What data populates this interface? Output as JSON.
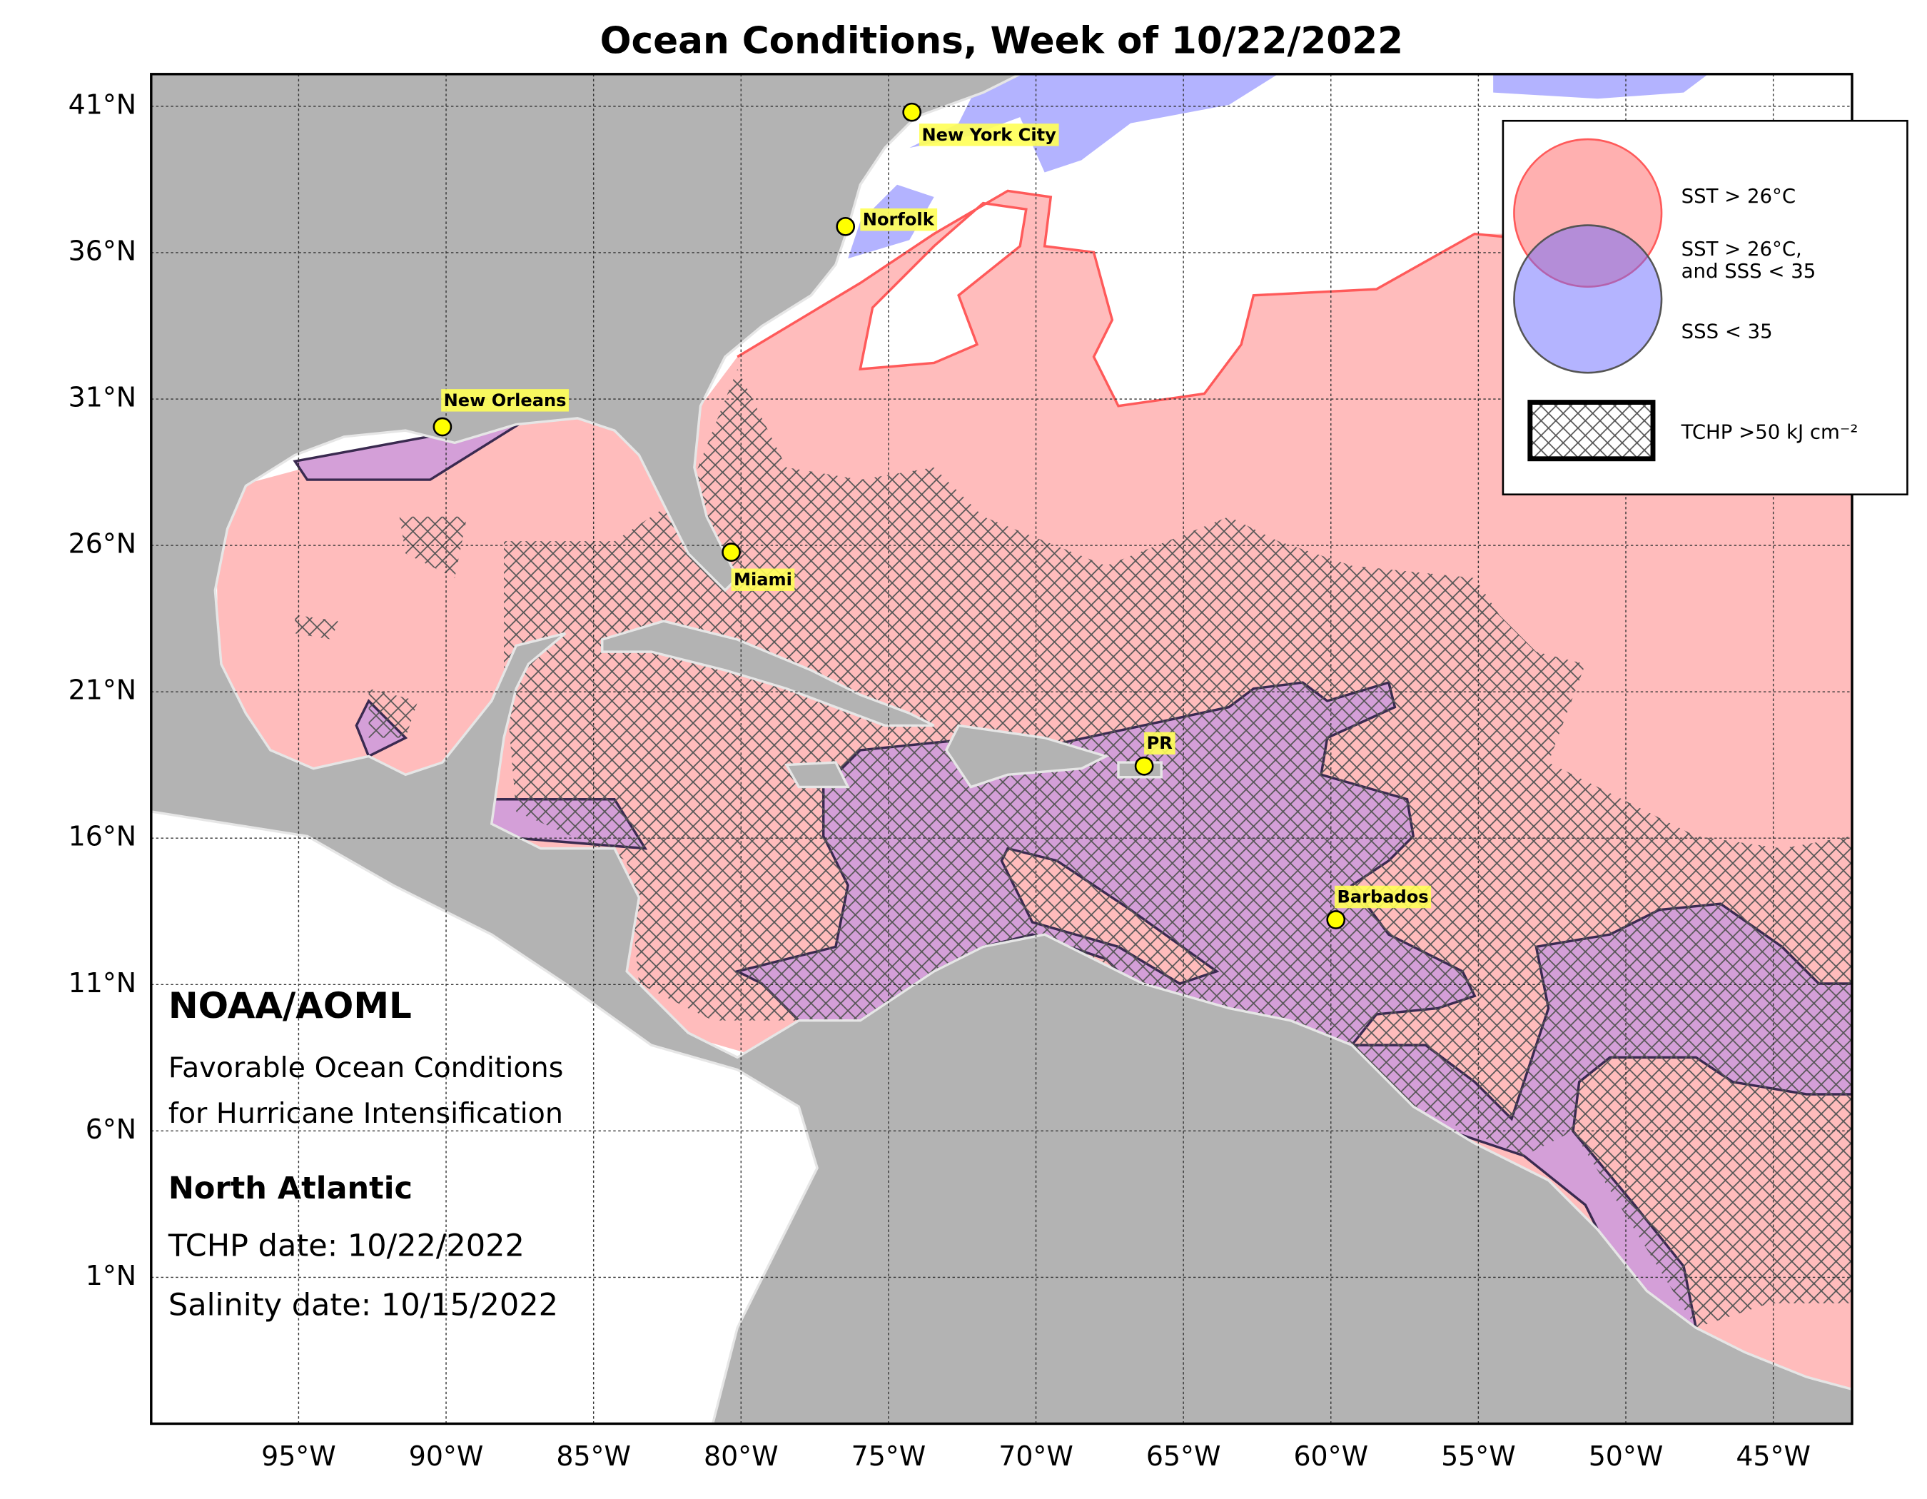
{
  "title": "Ocean Conditions, Week of 10/22/2022",
  "map": {
    "lon_range": [
      -100,
      -42.33
    ],
    "lat_range": [
      -4,
      42.1
    ],
    "grid": true,
    "lon_ticks": [
      {
        "value": -95,
        "label": "95°W"
      },
      {
        "value": -90,
        "label": "90°W"
      },
      {
        "value": -85,
        "label": "85°W"
      },
      {
        "value": -80,
        "label": "80°W"
      },
      {
        "value": -75,
        "label": "75°W"
      },
      {
        "value": -70,
        "label": "70°W"
      },
      {
        "value": -65,
        "label": "65°W"
      },
      {
        "value": -60,
        "label": "60°W"
      },
      {
        "value": -55,
        "label": "55°W"
      },
      {
        "value": -50,
        "label": "50°W"
      },
      {
        "value": -45,
        "label": "45°W"
      }
    ],
    "lat_ticks": [
      {
        "value": 41,
        "label": "41°N"
      },
      {
        "value": 36,
        "label": "36°N"
      },
      {
        "value": 31,
        "label": "31°N"
      },
      {
        "value": 26,
        "label": "26°N"
      },
      {
        "value": 21,
        "label": "21°N"
      },
      {
        "value": 16,
        "label": "16°N"
      },
      {
        "value": 11,
        "label": "11°N"
      },
      {
        "value": 6,
        "label": "6°N"
      },
      {
        "value": 1,
        "label": "1°N"
      }
    ]
  },
  "cities": [
    "New York City",
    "Norfolk",
    "New Orleans",
    "Miami",
    "PR",
    "Barbados"
  ],
  "legend": {
    "sst": "SST > 26°C",
    "both": [
      "SST > 26°C,",
      "and SSS < 35"
    ],
    "sss": "SSS < 35",
    "tchp": "TCHP >50 kJ cm⁻²"
  },
  "info": {
    "org": "NOAA/AOML",
    "subtitle": [
      "Favorable Ocean Conditions",
      "for Hurricane Intensification"
    ],
    "region": "North Atlantic",
    "tchp_date": "TCHP date: 10/22/2022",
    "salinity_date": "Salinity date: 10/15/2022"
  }
}
